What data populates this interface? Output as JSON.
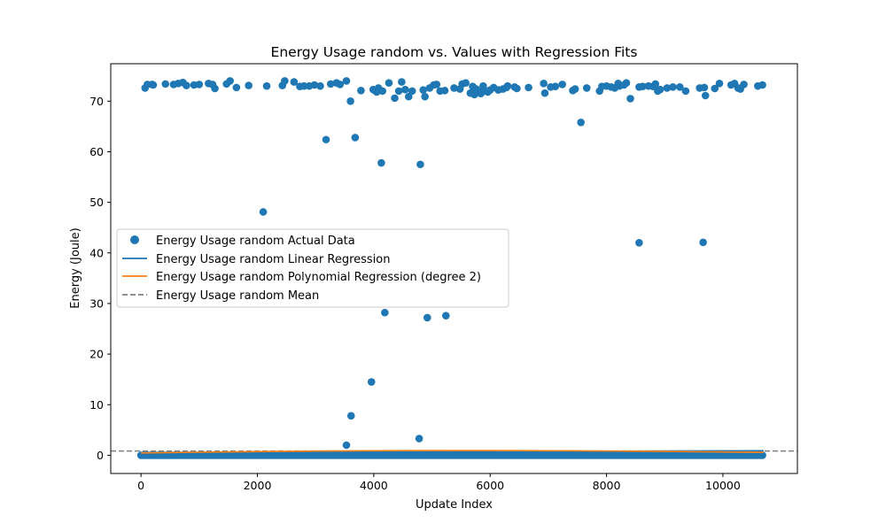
{
  "chart_data": {
    "type": "scatter",
    "title": "Energy Usage random vs. Values with Regression Fits",
    "xlabel": "Update Index",
    "ylabel": "Energy (Joule)",
    "xlim": [
      -520,
      11280
    ],
    "ylim": [
      -3.6,
      77.4
    ],
    "xticks": [
      0,
      2000,
      4000,
      6000,
      8000,
      10000
    ],
    "yticks": [
      0,
      10,
      20,
      30,
      40,
      50,
      60,
      70
    ],
    "grid": false,
    "legend_position": "center-left",
    "legend": [
      "Energy Usage random Actual Data",
      "Energy Usage random Linear Regression",
      "Energy Usage random Polynomial Regression (degree 2)",
      "Energy Usage random Mean"
    ],
    "colors": {
      "scatter": "#1f77b4",
      "linear": "#1f77b4",
      "poly": "#ff7f0e",
      "mean": "#808080"
    },
    "series": [
      {
        "name": "Energy Usage random Actual Data",
        "kind": "scatter",
        "baseline_band": {
          "x_start": 0,
          "x_end": 10700,
          "y": 0.0
        },
        "points": [
          [
            70,
            72.6
          ],
          [
            110,
            73.3
          ],
          [
            190,
            73.3
          ],
          [
            210,
            73.2
          ],
          [
            420,
            73.4
          ],
          [
            560,
            73.3
          ],
          [
            640,
            73.5
          ],
          [
            720,
            73.7
          ],
          [
            780,
            73.1
          ],
          [
            910,
            73.2
          ],
          [
            1000,
            73.3
          ],
          [
            1160,
            73.5
          ],
          [
            1230,
            73.3
          ],
          [
            1270,
            72.5
          ],
          [
            1470,
            73.4
          ],
          [
            1530,
            74.0
          ],
          [
            1640,
            72.7
          ],
          [
            1850,
            73.1
          ],
          [
            2160,
            73.0
          ],
          [
            2430,
            73.1
          ],
          [
            2470,
            74.0
          ],
          [
            2630,
            73.8
          ],
          [
            2730,
            72.9
          ],
          [
            2800,
            73.0
          ],
          [
            2890,
            73.0
          ],
          [
            2980,
            73.2
          ],
          [
            3080,
            73.0
          ],
          [
            3260,
            73.4
          ],
          [
            3360,
            73.6
          ],
          [
            3420,
            73.3
          ],
          [
            3530,
            74.0
          ],
          [
            3780,
            72.1
          ],
          [
            3990,
            72.3
          ],
          [
            4020,
            72.1
          ],
          [
            4050,
            71.8
          ],
          [
            4080,
            72.6
          ],
          [
            4150,
            72.0
          ],
          [
            4260,
            73.6
          ],
          [
            4360,
            70.6
          ],
          [
            4430,
            72.0
          ],
          [
            4480,
            73.8
          ],
          [
            4540,
            72.3
          ],
          [
            4600,
            70.9
          ],
          [
            4660,
            72.0
          ],
          [
            4850,
            72.2
          ],
          [
            4880,
            70.9
          ],
          [
            4960,
            72.6
          ],
          [
            5030,
            73.2
          ],
          [
            5080,
            73.3
          ],
          [
            5140,
            72.0
          ],
          [
            5220,
            72.1
          ],
          [
            5380,
            72.6
          ],
          [
            5480,
            72.4
          ],
          [
            5520,
            73.4
          ],
          [
            5580,
            73.6
          ],
          [
            5660,
            71.6
          ],
          [
            5700,
            72.9
          ],
          [
            5730,
            71.3
          ],
          [
            5760,
            72.4
          ],
          [
            5800,
            71.9
          ],
          [
            5840,
            71.5
          ],
          [
            5880,
            73.0
          ],
          [
            5920,
            72.0
          ],
          [
            5960,
            71.8
          ],
          [
            6000,
            72.2
          ],
          [
            6060,
            72.7
          ],
          [
            6140,
            72.2
          ],
          [
            6220,
            72.4
          ],
          [
            6280,
            72.7
          ],
          [
            6300,
            73.0
          ],
          [
            6420,
            72.8
          ],
          [
            6460,
            72.5
          ],
          [
            6660,
            72.7
          ],
          [
            6920,
            73.5
          ],
          [
            6940,
            71.6
          ],
          [
            7040,
            72.8
          ],
          [
            7120,
            72.9
          ],
          [
            7240,
            73.3
          ],
          [
            7420,
            72.1
          ],
          [
            7460,
            72.4
          ],
          [
            7660,
            72.6
          ],
          [
            7880,
            72.0
          ],
          [
            7920,
            72.9
          ],
          [
            8000,
            73.0
          ],
          [
            8080,
            72.8
          ],
          [
            8140,
            72.6
          ],
          [
            8200,
            73.5
          ],
          [
            8220,
            73.0
          ],
          [
            8300,
            73.2
          ],
          [
            8340,
            73.6
          ],
          [
            8410,
            70.5
          ],
          [
            8560,
            72.8
          ],
          [
            8620,
            72.9
          ],
          [
            8720,
            73.0
          ],
          [
            8800,
            72.9
          ],
          [
            8840,
            73.4
          ],
          [
            8880,
            72.0
          ],
          [
            8920,
            72.3
          ],
          [
            9040,
            72.6
          ],
          [
            9140,
            72.8
          ],
          [
            9260,
            72.8
          ],
          [
            9360,
            72.0
          ],
          [
            9600,
            72.6
          ],
          [
            9680,
            72.7
          ],
          [
            9700,
            71.1
          ],
          [
            9860,
            72.5
          ],
          [
            9940,
            73.5
          ],
          [
            10140,
            73.2
          ],
          [
            10200,
            73.5
          ],
          [
            10260,
            72.6
          ],
          [
            10300,
            72.4
          ],
          [
            10360,
            73.3
          ],
          [
            10600,
            73.0
          ],
          [
            10680,
            73.2
          ],
          [
            3600,
            70.0
          ],
          [
            3180,
            62.4
          ],
          [
            3680,
            62.8
          ],
          [
            7560,
            65.8
          ],
          [
            4130,
            57.8
          ],
          [
            4800,
            57.5
          ],
          [
            2100,
            48.1
          ],
          [
            8560,
            42.0
          ],
          [
            9660,
            42.1
          ],
          [
            4190,
            28.2
          ],
          [
            4920,
            27.2
          ],
          [
            5240,
            27.6
          ],
          [
            3960,
            14.5
          ],
          [
            3610,
            7.8
          ],
          [
            3530,
            2.0
          ],
          [
            4780,
            3.3
          ]
        ]
      },
      {
        "name": "Energy Usage random Linear Regression",
        "kind": "line",
        "x": [
          0,
          10700
        ],
        "y": [
          0.5,
          0.9
        ]
      },
      {
        "name": "Energy Usage random Polynomial Regression (degree 2)",
        "kind": "line",
        "x": [
          0,
          1000,
          2000,
          3000,
          4000,
          5000,
          5350,
          6000,
          7000,
          8000,
          9000,
          10000,
          10700
        ],
        "y": [
          0.45,
          0.6,
          0.72,
          0.82,
          0.89,
          0.93,
          0.94,
          0.93,
          0.9,
          0.84,
          0.76,
          0.65,
          0.57
        ]
      },
      {
        "name": "Energy Usage random Mean",
        "kind": "hline",
        "y": 0.85
      }
    ]
  }
}
